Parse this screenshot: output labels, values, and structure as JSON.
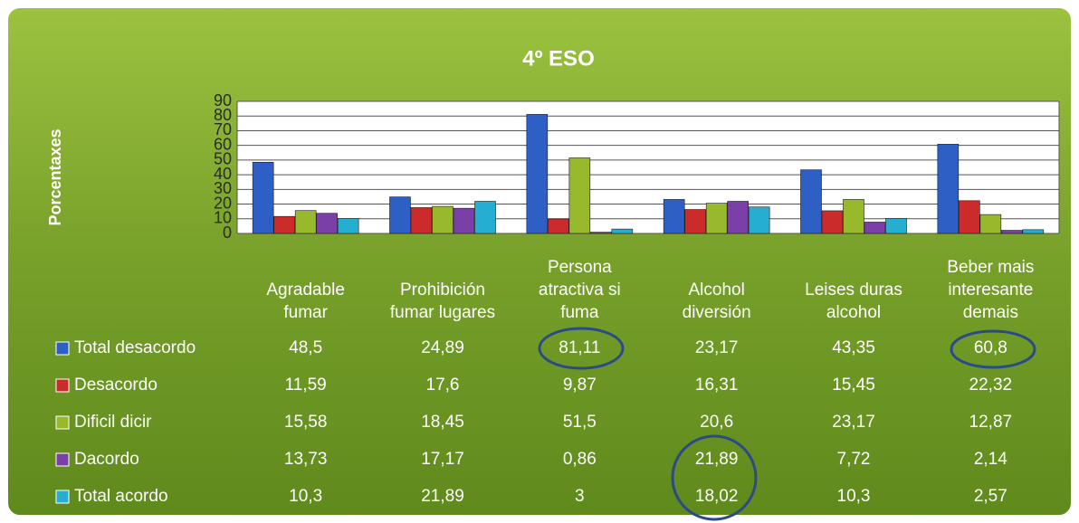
{
  "chart_data": {
    "type": "bar",
    "title": "4º ESO",
    "y_axis_label": "Porcentaxes",
    "categories": [
      "Agradable fumar",
      "Prohibición fumar lugares",
      "Persona atractiva si fuma",
      "Alcohol diversión",
      "Leises duras alcohol",
      "Beber mais interesante demais"
    ],
    "series": [
      {
        "name": "Total desacordo",
        "color": "#2e5fc4",
        "values": [
          48.5,
          24.89,
          81.11,
          23.17,
          43.35,
          60.8
        ],
        "value_labels": [
          "48,5",
          "24,89",
          "81,11",
          "23,17",
          "43,35",
          "60,8"
        ]
      },
      {
        "name": "Desacordo",
        "color": "#cc2b2b",
        "values": [
          11.59,
          17.6,
          9.87,
          16.31,
          15.45,
          22.32
        ],
        "value_labels": [
          "11,59",
          "17,6",
          "9,87",
          "16,31",
          "15,45",
          "22,32"
        ]
      },
      {
        "name": "Dificil dicir",
        "color": "#98b92c",
        "values": [
          15.58,
          18.45,
          51.5,
          20.6,
          23.17,
          12.87
        ],
        "value_labels": [
          "15,58",
          "18,45",
          "51,5",
          "20,6",
          "23,17",
          "12,87"
        ]
      },
      {
        "name": "Dacordo",
        "color": "#7a40a8",
        "values": [
          13.73,
          17.17,
          0.86,
          21.89,
          7.72,
          2.14
        ],
        "value_labels": [
          "13,73",
          "17,17",
          "0,86",
          "21,89",
          "7,72",
          "2,14"
        ]
      },
      {
        "name": "Total acordo",
        "color": "#26aed0",
        "values": [
          10.3,
          21.89,
          3,
          18.02,
          10.3,
          2.57
        ],
        "value_labels": [
          "10,3",
          "21,89",
          "3",
          "18,02",
          "10,3",
          "2,57"
        ]
      }
    ],
    "ylim": [
      0,
      90
    ],
    "yticks": [
      0,
      10,
      20,
      30,
      40,
      50,
      60,
      70,
      80,
      90
    ],
    "grid": true,
    "data_table": true
  }
}
